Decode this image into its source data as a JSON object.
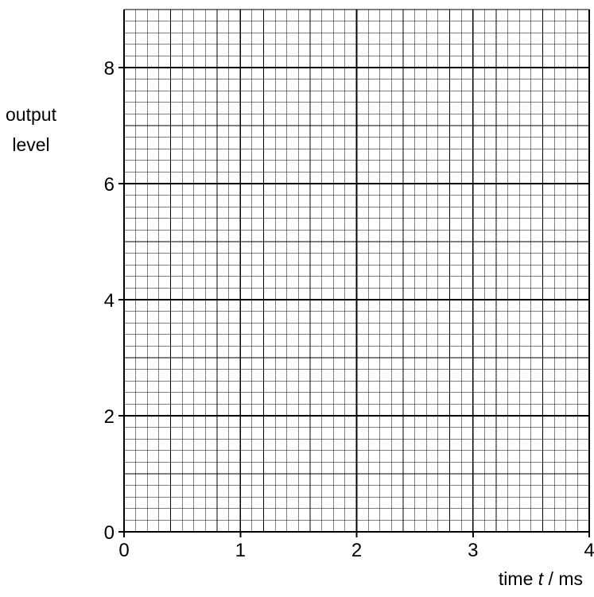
{
  "chart_data": {
    "type": "line",
    "title": "",
    "xlabel_prefix": "time ",
    "xlabel_var": "t",
    "xlabel_suffix": " / ms",
    "ylabel_line1": "output",
    "ylabel_line2": "level",
    "xlim": [
      0,
      4
    ],
    "ylim": [
      0,
      9
    ],
    "x_ticks": [
      0,
      1,
      2,
      3,
      4
    ],
    "y_ticks": [
      0,
      2,
      4,
      6,
      8
    ],
    "grid": true,
    "grid_minor_per_major": 10,
    "series": []
  }
}
